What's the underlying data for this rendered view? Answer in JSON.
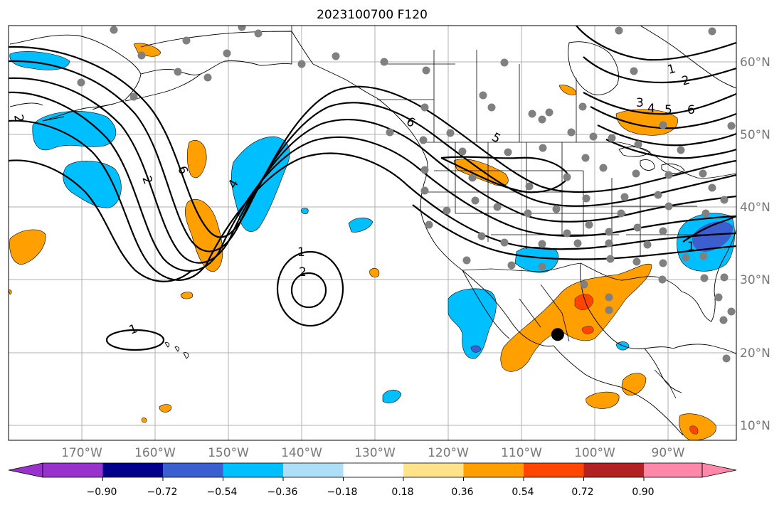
{
  "title": "2023100700 F120",
  "lon_labels": [
    "170°W",
    "160°W",
    "150°W",
    "140°W",
    "130°W",
    "120°W",
    "110°W",
    "100°W",
    "90°W"
  ],
  "lat_labels": [
    "60°N",
    "50°N",
    "40°N",
    "30°N",
    "20°N",
    "10°N"
  ],
  "colorbar": {
    "colors": [
      "#9932CC",
      "#00008B",
      "#3B5FCF",
      "#00BFFF",
      "#ADDFF7",
      "#FFFFFF",
      "#FFE38A",
      "#FF9F00",
      "#FF4500",
      "#B22222",
      "#FF88AA"
    ],
    "tick_labels": [
      "−0.90",
      "−0.72",
      "−0.54",
      "−0.36",
      "−0.18",
      "0.18",
      "0.36",
      "0.54",
      "0.72",
      "0.90"
    ]
  },
  "contour_labels": {
    "c1": "1",
    "c2": "2",
    "c3": "3",
    "c4": "4",
    "c5": "5",
    "c6": "6",
    "c7": "1",
    "c8": "2",
    "c9": "4",
    "c10": "6",
    "c11": "2",
    "c12": "1",
    "c13": "6",
    "c14": "5",
    "c15": "1",
    "c16": "2"
  },
  "marker": {
    "color": "#000000",
    "lon": -105.0,
    "lat": 22.5
  },
  "stations_color": "#808080"
}
